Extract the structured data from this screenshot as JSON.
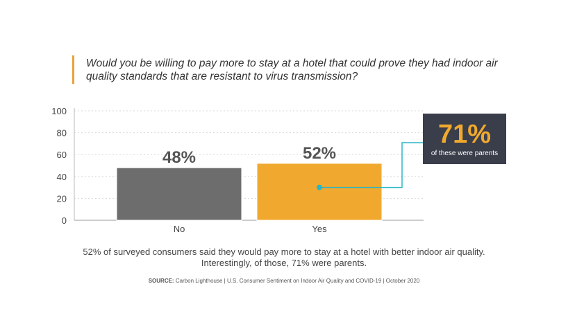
{
  "question": "Would you be willing to pay more to stay at a hotel that could prove they had indoor air quality standards that are resistant to virus transmission?",
  "chart_data": {
    "type": "bar",
    "categories": [
      "No",
      "Yes"
    ],
    "values": [
      48,
      52
    ],
    "data_labels": [
      "48%",
      "52%"
    ],
    "ylim": [
      0,
      100
    ],
    "yticks": [
      0,
      20,
      40,
      60,
      80,
      100
    ],
    "grid": true,
    "bar_colors": [
      "#6d6d6d",
      "#f0a92e"
    ],
    "callout": {
      "value": "71%",
      "text": "of these were parents",
      "attached_to": "Yes",
      "anchor_value": 30
    }
  },
  "caption": {
    "line1": "52% of surveyed consumers said they would pay more to stay at a hotel with better indoor air quality.",
    "line2": "Interestingly, of those, 71% were parents."
  },
  "source": {
    "label": "SOURCE:",
    "text": "Carbon Lighthouse | U.S. Consumer Sentiment on Indoor Air Quality and COVID-19 | October 2020"
  },
  "colors": {
    "accent": "#e8a33a",
    "callout_bg": "#3a3d4a",
    "callout_value": "#f0a92e",
    "connector": "#2bb5c4"
  }
}
